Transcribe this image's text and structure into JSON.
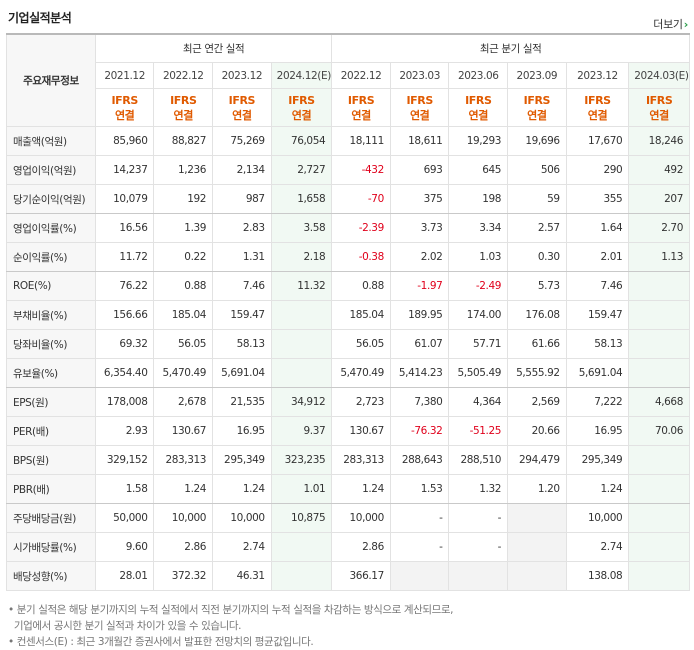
{
  "title": "기업실적분석",
  "more_label": "더보기",
  "more_arrow": "›",
  "corner_label": "주요재무정보",
  "groups": {
    "annual": "최근 연간 실적",
    "quarterly": "최근 분기 실적"
  },
  "dates": {
    "annual": [
      "2021.12",
      "2022.12",
      "2023.12",
      "2024.12(E)"
    ],
    "quarterly": [
      "2022.12",
      "2023.03",
      "2023.06",
      "2023.09",
      "2023.12",
      "2024.03(E)"
    ]
  },
  "ifrs": [
    "IFRS",
    "연결"
  ],
  "rows": [
    {
      "label": "매출액(억원)",
      "values": [
        "85,960",
        "88,827",
        "75,269",
        "76,054",
        "18,111",
        "18,611",
        "19,293",
        "19,696",
        "17,670",
        "18,246"
      ]
    },
    {
      "label": "영업이익(억원)",
      "values": [
        "14,237",
        "1,236",
        "2,134",
        "2,727",
        "-432",
        "693",
        "645",
        "506",
        "290",
        "492"
      ]
    },
    {
      "label": "당기순이익(억원)",
      "values": [
        "10,079",
        "192",
        "987",
        "1,658",
        "-70",
        "375",
        "198",
        "59",
        "355",
        "207"
      ]
    },
    {
      "label": "영업이익률(%)",
      "values": [
        "16.56",
        "1.39",
        "2.83",
        "3.58",
        "-2.39",
        "3.73",
        "3.34",
        "2.57",
        "1.64",
        "2.70"
      ]
    },
    {
      "label": "순이익률(%)",
      "values": [
        "11.72",
        "0.22",
        "1.31",
        "2.18",
        "-0.38",
        "2.02",
        "1.03",
        "0.30",
        "2.01",
        "1.13"
      ]
    },
    {
      "label": "ROE(%)",
      "values": [
        "76.22",
        "0.88",
        "7.46",
        "11.32",
        "0.88",
        "-1.97",
        "-2.49",
        "5.73",
        "7.46",
        ""
      ]
    },
    {
      "label": "부채비율(%)",
      "values": [
        "156.66",
        "185.04",
        "159.47",
        "",
        "185.04",
        "189.95",
        "174.00",
        "176.08",
        "159.47",
        ""
      ]
    },
    {
      "label": "당좌비율(%)",
      "values": [
        "69.32",
        "56.05",
        "58.13",
        "",
        "56.05",
        "61.07",
        "57.71",
        "61.66",
        "58.13",
        ""
      ]
    },
    {
      "label": "유보율(%)",
      "values": [
        "6,354.40",
        "5,470.49",
        "5,691.04",
        "",
        "5,470.49",
        "5,414.23",
        "5,505.49",
        "5,555.92",
        "5,691.04",
        ""
      ]
    },
    {
      "label": "EPS(원)",
      "values": [
        "178,008",
        "2,678",
        "21,535",
        "34,912",
        "2,723",
        "7,380",
        "4,364",
        "2,569",
        "7,222",
        "4,668"
      ]
    },
    {
      "label": "PER(배)",
      "values": [
        "2.93",
        "130.67",
        "16.95",
        "9.37",
        "130.67",
        "-76.32",
        "-51.25",
        "20.66",
        "16.95",
        "70.06"
      ]
    },
    {
      "label": "BPS(원)",
      "values": [
        "329,152",
        "283,313",
        "295,349",
        "323,235",
        "283,313",
        "288,643",
        "288,510",
        "294,479",
        "295,349",
        ""
      ]
    },
    {
      "label": "PBR(배)",
      "values": [
        "1.58",
        "1.24",
        "1.24",
        "1.01",
        "1.24",
        "1.53",
        "1.32",
        "1.20",
        "1.24",
        ""
      ]
    },
    {
      "label": "주당배당금(원)",
      "values": [
        "50,000",
        "10,000",
        "10,000",
        "10,875",
        "10,000",
        "-",
        "-",
        "",
        "10,000",
        ""
      ]
    },
    {
      "label": "시가배당률(%)",
      "values": [
        "9.60",
        "2.86",
        "2.74",
        "",
        "2.86",
        "-",
        "-",
        "",
        "2.74",
        ""
      ]
    },
    {
      "label": "배당성향(%)",
      "values": [
        "28.01",
        "372.32",
        "46.31",
        "",
        "366.17",
        "",
        "",
        "",
        "138.08",
        ""
      ]
    }
  ],
  "notes": [
    "분기 실적은 해당 분기까지의 누적 실적에서 직전 분기까지의 누적 실적을 차감하는 방식으로 계산되므로,",
    "기업에서 공시한 분기 실적과 차이가 있을 수 있습니다.",
    "컨센서스(E) : 최근 3개월간 증권사에서 발표한 전망치의 평균값입니다."
  ]
}
